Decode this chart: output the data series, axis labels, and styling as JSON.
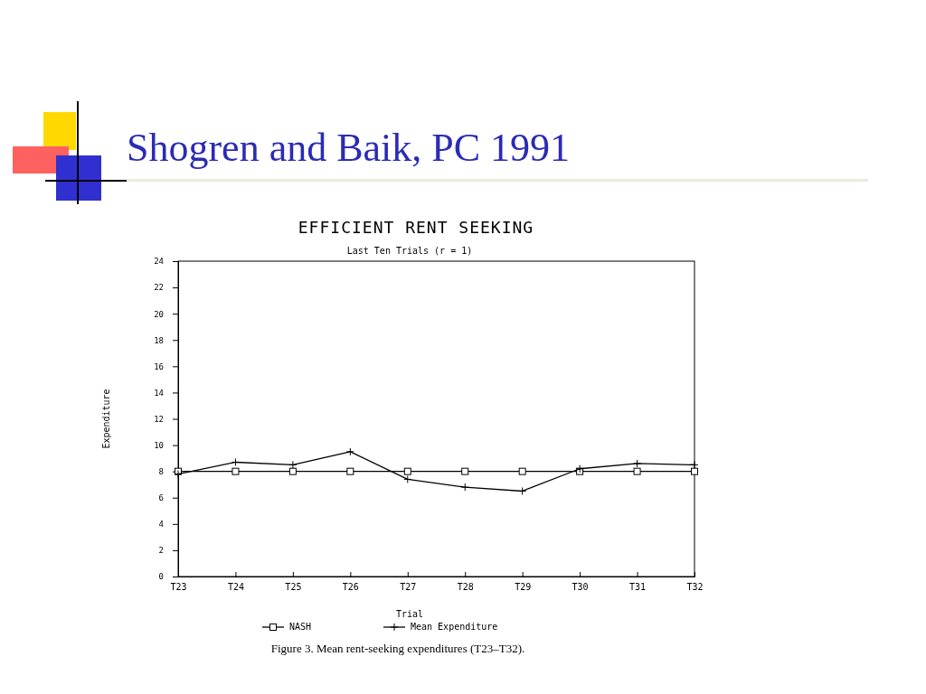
{
  "chart_data": {
    "type": "line",
    "title": "EFFICIENT RENT SEEKING",
    "subtitle": "Last Ten Trials (r = 1)",
    "xlabel": "Trial",
    "ylabel": "Expenditure",
    "annotations": [
      "Shogren and Baik, PC 1991",
      "Figure 3. Mean rent-seeking expenditures (T23–T32)."
    ],
    "categories": [
      "T23",
      "T24",
      "T25",
      "T26",
      "T27",
      "T28",
      "T29",
      "T30",
      "T31",
      "T32"
    ],
    "series": [
      {
        "name": "NASH",
        "color": "#000000",
        "marker": "square",
        "values": [
          8,
          8,
          8,
          8,
          8,
          8,
          8,
          8,
          8,
          8
        ]
      },
      {
        "name": "Mean Expenditure",
        "color": "#000000",
        "marker": "cross",
        "values": [
          7.8,
          8.7,
          8.5,
          9.5,
          7.4,
          6.8,
          6.5,
          8.2,
          8.6,
          8.5
        ]
      }
    ],
    "ylim": [
      0,
      24
    ],
    "yticks": [
      0,
      2,
      4,
      6,
      8,
      10,
      12,
      14,
      16,
      18,
      20,
      22,
      24
    ],
    "grid": false,
    "legend": "bottom",
    "line_style": "solid"
  }
}
